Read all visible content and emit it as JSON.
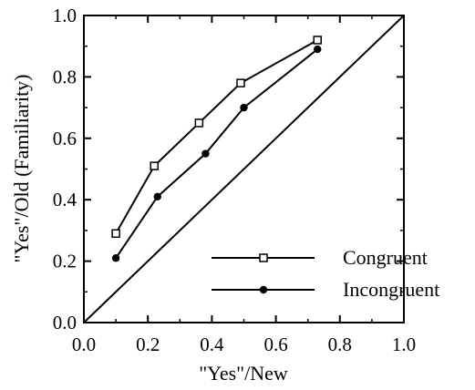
{
  "chart_data": {
    "type": "line",
    "xlabel": "\"Yes\"/New",
    "ylabel": "\"Yes\"/Old (Familiarity)",
    "xlim": [
      0.0,
      1.0
    ],
    "ylim": [
      0.0,
      1.0
    ],
    "x_ticks": [
      "0.0",
      "0.2",
      "0.4",
      "0.6",
      "0.8",
      "1.0"
    ],
    "y_ticks": [
      "0.0",
      "0.2",
      "0.4",
      "0.6",
      "0.8",
      "1.0"
    ],
    "grid": false,
    "legend_position": "lower-right",
    "reference_line": {
      "from": [
        0,
        0
      ],
      "to": [
        1,
        1
      ]
    },
    "series": [
      {
        "name": "Congruent",
        "marker": "open-square",
        "x": [
          0.1,
          0.22,
          0.36,
          0.49,
          0.73
        ],
        "y": [
          0.29,
          0.51,
          0.65,
          0.78,
          0.92
        ]
      },
      {
        "name": "Incongruent",
        "marker": "filled-circle",
        "x": [
          0.1,
          0.23,
          0.38,
          0.5,
          0.73
        ],
        "y": [
          0.21,
          0.41,
          0.55,
          0.7,
          0.89
        ]
      }
    ]
  }
}
